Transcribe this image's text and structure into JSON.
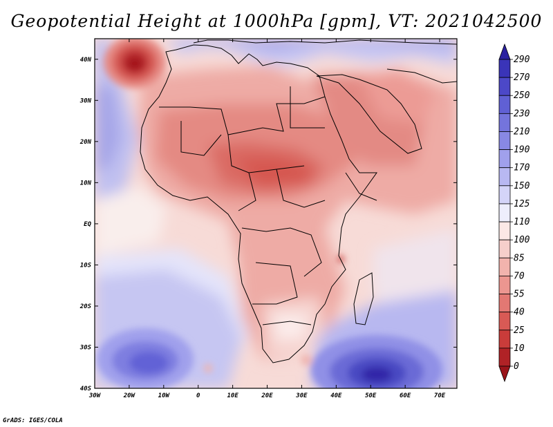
{
  "title": "Geopotential Height at 1000hPa [gpm], VT: 2021042500",
  "footer": "GrADS: IGES/COLA",
  "map": {
    "lon_range": [
      -30,
      75
    ],
    "lat_range": [
      -40,
      45
    ],
    "x_ticks": [
      "30W",
      "20W",
      "10W",
      "0",
      "10E",
      "20E",
      "30E",
      "40E",
      "50E",
      "60E",
      "70E"
    ],
    "y_ticks": [
      "40N",
      "30N",
      "20N",
      "10N",
      "EQ",
      "10S",
      "20S",
      "30S",
      "40S"
    ]
  },
  "colorbar": {
    "labels": [
      "290",
      "270",
      "250",
      "230",
      "210",
      "190",
      "170",
      "150",
      "125",
      "110",
      "100",
      "85",
      "70",
      "55",
      "40",
      "25",
      "10",
      "0"
    ],
    "colors": [
      "#2a20a0",
      "#3a34b8",
      "#4c48c8",
      "#6060d4",
      "#7474dc",
      "#8888e4",
      "#a0a0ec",
      "#b8b8f2",
      "#d4d4f8",
      "#eeeefc",
      "#fbe8e6",
      "#f6cfcb",
      "#f2b3ad",
      "#ec9690",
      "#e37873",
      "#d85a55",
      "#c93c3a",
      "#b02226",
      "#9a141a"
    ]
  },
  "chart_data": {
    "type": "heatmap",
    "title": "Geopotential Height at 1000hPa [gpm], VT: 2021042500",
    "variable": "Geopotential Height",
    "level": "1000hPa",
    "units": "gpm",
    "valid_time": "2021042500",
    "x_range_deg_lon": [
      -30,
      75
    ],
    "y_range_deg_lat": [
      -40,
      45
    ],
    "contour_levels": [
      0,
      10,
      25,
      40,
      55,
      70,
      85,
      100,
      110,
      125,
      150,
      170,
      190,
      210,
      230,
      250,
      270,
      290
    ],
    "features": [
      {
        "name": "low over Atlantic near 37N 20W",
        "approx_value": 5
      },
      {
        "name": "low over Sahel / Sudan",
        "approx_value": 20
      },
      {
        "name": "high southwest Atlantic near 33S 20W",
        "approx_value": 220
      },
      {
        "name": "high southern Indian Ocean near 37S 52E",
        "approx_value": 270
      }
    ]
  }
}
